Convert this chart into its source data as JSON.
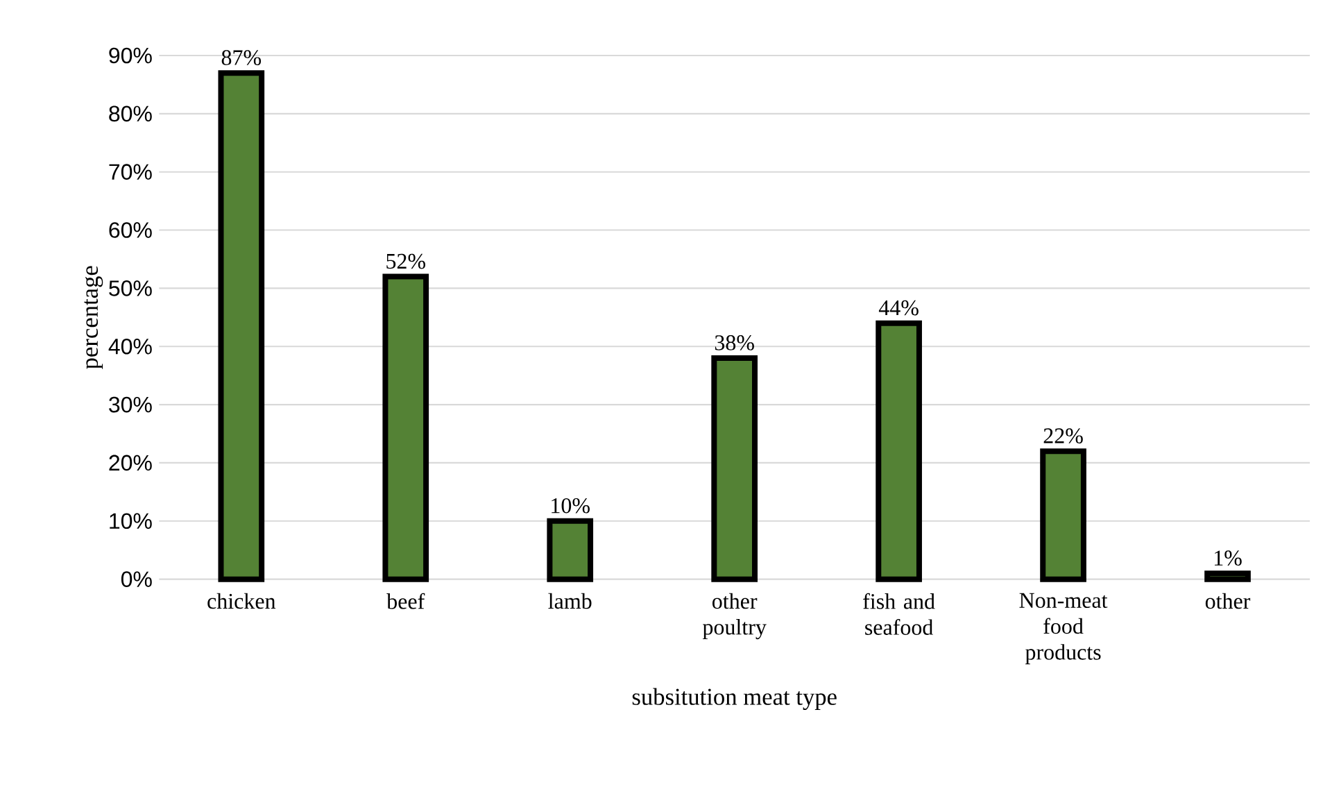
{
  "chart_data": {
    "type": "bar",
    "xlabel": "subsitution meat type",
    "ylabel": "percentage",
    "categories": [
      "chicken",
      "beef",
      "lamb",
      "other poultry",
      "fish and seafood",
      "Non-meat food products",
      "other"
    ],
    "values": [
      87,
      52,
      10,
      38,
      44,
      22,
      1
    ],
    "value_labels": [
      "87%",
      "52%",
      "10%",
      "38%",
      "44%",
      "22%",
      "1%"
    ],
    "color": "#548235",
    "ylim": [
      0,
      90
    ],
    "yticks": [
      {
        "value": 0,
        "label": "0%"
      },
      {
        "value": 10,
        "label": "10%"
      },
      {
        "value": 20,
        "label": "20%"
      },
      {
        "value": 30,
        "label": "30%"
      },
      {
        "value": 40,
        "label": "40%"
      },
      {
        "value": 50,
        "label": "50%"
      },
      {
        "value": 60,
        "label": "60%"
      },
      {
        "value": 70,
        "label": "70%"
      },
      {
        "value": 80,
        "label": "80%"
      },
      {
        "value": 90,
        "label": "90%"
      }
    ],
    "grid": "y"
  }
}
